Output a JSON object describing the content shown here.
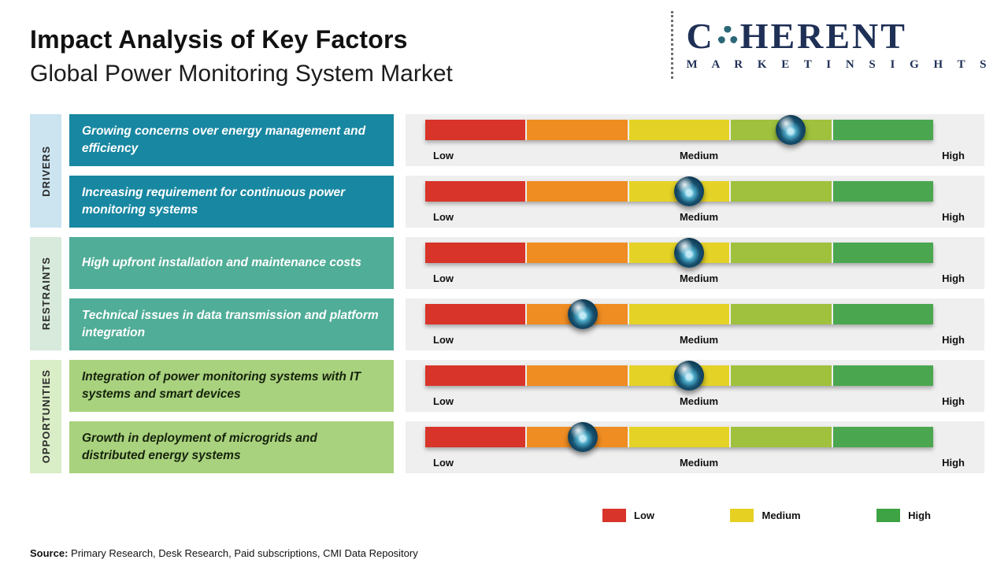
{
  "header": {
    "title": "Impact Analysis of Key Factors",
    "subtitle": "Global Power Monitoring System Market",
    "logo": {
      "part1": "C",
      "part2": "HERENT",
      "line2": "M A R K E T   I N S I G H T S"
    }
  },
  "categories": [
    {
      "label": "DRIVERS"
    },
    {
      "label": "RESTRAINTS"
    },
    {
      "label": "OPPORTUNITIES"
    }
  ],
  "scale": {
    "low": "Low",
    "medium": "Medium",
    "high": "High"
  },
  "rows": [
    {
      "category": "DRIVERS",
      "text": "Growing concerns over energy management and efficiency",
      "impact_percent": 72
    },
    {
      "category": "DRIVERS",
      "text": " Increasing requirement for continuous power monitoring systems",
      "impact_percent": 52
    },
    {
      "category": "RESTRAINTS",
      "text": "High upfront installation and maintenance costs",
      "impact_percent": 52
    },
    {
      "category": "RESTRAINTS",
      "text": "Technical issues in data transmission and platform integration",
      "impact_percent": 31
    },
    {
      "category": "OPPORTUNITIES",
      "text": " Integration of power monitoring systems with IT systems and smart devices",
      "impact_percent": 52
    },
    {
      "category": "OPPORTUNITIES",
      "text": "Growth in deployment of microgrids and distributed energy systems",
      "impact_percent": 31
    }
  ],
  "legend": [
    {
      "label": "Low",
      "color": "#d8342a"
    },
    {
      "label": "Medium",
      "color": "#e6d021"
    },
    {
      "label": "High",
      "color": "#3da344"
    }
  ],
  "source": {
    "label": "Source:",
    "text": " Primary Research, Desk Research, Paid subscriptions, CMI Data Repository"
  },
  "chart_data": {
    "type": "bar",
    "title": "Impact Analysis of Key Factors",
    "subtitle": "Global Power Monitoring System Market",
    "scale_labels": [
      "Low",
      "Medium",
      "High"
    ],
    "scale_range_percent": [
      0,
      100
    ],
    "groups": [
      "DRIVERS",
      "DRIVERS",
      "RESTRAINTS",
      "RESTRAINTS",
      "OPPORTUNITIES",
      "OPPORTUNITIES"
    ],
    "categories": [
      "Growing concerns over energy management and efficiency",
      "Increasing requirement for continuous power monitoring systems",
      "High upfront installation and maintenance costs",
      "Technical issues in data transmission and platform integration",
      "Integration of power monitoring systems with IT systems and smart devices",
      "Growth in deployment of microgrids and distributed energy systems"
    ],
    "values": [
      72,
      52,
      52,
      31,
      52,
      31
    ],
    "value_meaning": "marker position as percent of Low-to-High scale",
    "segment_colors": [
      "#d8342a",
      "#ef8d22",
      "#e5d226",
      "#9fc13d",
      "#4aa750"
    ],
    "legend": [
      "Low",
      "Medium",
      "High"
    ],
    "legend_position": "bottom-right",
    "grid": false
  }
}
